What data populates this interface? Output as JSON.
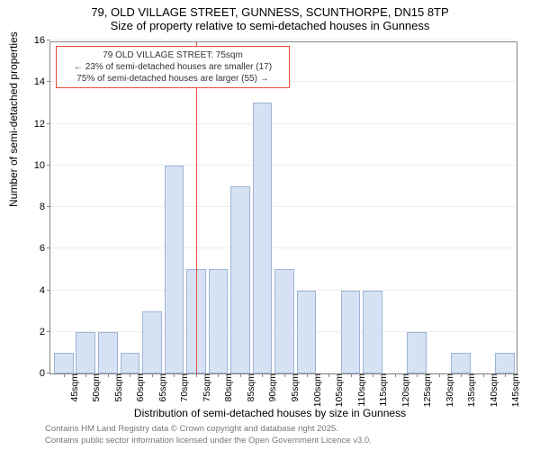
{
  "title_line1": "79, OLD VILLAGE STREET, GUNNESS, SCUNTHORPE, DN15 8TP",
  "title_line2": "Size of property relative to semi-detached houses in Gunness",
  "ylabel": "Number of semi-detached properties",
  "xlabel": "Distribution of semi-detached houses by size in Gunness",
  "footer_line1": "Contains HM Land Registry data © Crown copyright and database right 2025.",
  "footer_line2": "Contains public sector information licensed under the Open Government Licence v3.0.",
  "chart": {
    "type": "histogram",
    "ylim": [
      0,
      16
    ],
    "ytick_step": 2,
    "xticks": [
      45,
      50,
      55,
      60,
      65,
      70,
      75,
      80,
      85,
      90,
      95,
      100,
      105,
      110,
      115,
      120,
      125,
      130,
      135,
      140,
      145
    ],
    "xtick_suffix": "sqm",
    "bar_color": "#d6e2f3",
    "bar_border_color": "#9db4d6",
    "background_color": "#ffffff",
    "grid_color": "#eeeeee",
    "axis_color": "#888888",
    "marker_color": "#e74c3c",
    "bar_width_ratio": 0.88,
    "bars": [
      {
        "x": 45,
        "y": 1
      },
      {
        "x": 50,
        "y": 2
      },
      {
        "x": 55,
        "y": 2
      },
      {
        "x": 60,
        "y": 1
      },
      {
        "x": 65,
        "y": 3
      },
      {
        "x": 70,
        "y": 10
      },
      {
        "x": 75,
        "y": 5
      },
      {
        "x": 80,
        "y": 5
      },
      {
        "x": 85,
        "y": 9
      },
      {
        "x": 90,
        "y": 13
      },
      {
        "x": 95,
        "y": 5
      },
      {
        "x": 100,
        "y": 4
      },
      {
        "x": 105,
        "y": 0
      },
      {
        "x": 110,
        "y": 4
      },
      {
        "x": 115,
        "y": 4
      },
      {
        "x": 120,
        "y": 0
      },
      {
        "x": 125,
        "y": 2
      },
      {
        "x": 130,
        "y": 0
      },
      {
        "x": 135,
        "y": 1
      },
      {
        "x": 140,
        "y": 0
      },
      {
        "x": 145,
        "y": 1
      }
    ],
    "marker_x": 75
  },
  "callout": {
    "line1": "79 OLD VILLAGE STREET: 75sqm",
    "line2": "← 23% of semi-detached houses are smaller (17)",
    "line3": "75% of semi-detached houses are larger (55) →"
  }
}
